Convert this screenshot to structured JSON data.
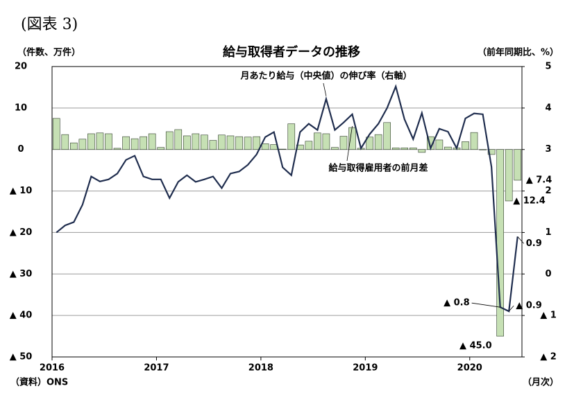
{
  "chart_data": {
    "type": "bar-line",
    "header": "(図表 3)",
    "title": "給与取得者データの推移",
    "y_label": "（件数、万件）",
    "y2_label": "（前年同期比、%）",
    "x_label": "（月次）",
    "source": "（資料）ONS",
    "categories": [
      "2016",
      null,
      null,
      null,
      null,
      null,
      null,
      null,
      null,
      null,
      null,
      null,
      "2017",
      null,
      null,
      null,
      null,
      null,
      null,
      null,
      null,
      null,
      null,
      null,
      "2018",
      null,
      null,
      null,
      null,
      null,
      null,
      null,
      null,
      null,
      null,
      null,
      "2019",
      null,
      null,
      null,
      null,
      null,
      null,
      null,
      null,
      null,
      null,
      null,
      "2020",
      null,
      null,
      null,
      null,
      null
    ],
    "ylim": [
      -50,
      20
    ],
    "yticks": [
      20,
      10,
      0,
      {
        "value": -10,
        "label": "▲ 10"
      },
      {
        "value": -20,
        "label": "▲ 20"
      },
      {
        "value": -30,
        "label": "▲ 30"
      },
      {
        "value": -40,
        "label": "▲ 40"
      },
      {
        "value": -50,
        "label": "▲ 50"
      }
    ],
    "y2lim": [
      -2,
      5
    ],
    "y2ticks": [
      5,
      4,
      3,
      2,
      1,
      0,
      {
        "value": -1,
        "label": "▲ 1"
      },
      {
        "value": -2,
        "label": "▲ 2"
      }
    ],
    "grid": true,
    "series": [
      {
        "name": "給与取得雇用者の前月差",
        "type": "bar",
        "color": "#c6e0b4",
        "values": [
          7.5,
          3.6,
          1.6,
          2.5,
          3.8,
          4.0,
          3.8,
          0.3,
          3.1,
          2.6,
          3.1,
          3.8,
          0.5,
          4.3,
          4.8,
          3.3,
          3.8,
          3.5,
          2.2,
          3.5,
          3.3,
          3.1,
          3.0,
          3.1,
          1.4,
          1.2,
          0.1,
          6.2,
          1.1,
          2.0,
          4.0,
          3.8,
          0.5,
          3.2,
          5.3,
          0.3,
          3.0,
          3.6,
          6.5,
          0.4,
          0.4,
          0.4,
          -0.7,
          3.1,
          2.3,
          0.6,
          0.4,
          1.9,
          4.1,
          -0.1,
          -1.2,
          -45.0,
          -12.4,
          -7.4
        ],
        "value_labels": [
          null,
          null,
          null,
          null,
          null,
          null,
          null,
          null,
          null,
          null,
          null,
          null,
          null,
          null,
          null,
          null,
          null,
          null,
          null,
          null,
          null,
          null,
          null,
          null,
          null,
          null,
          null,
          null,
          null,
          null,
          null,
          null,
          null,
          null,
          null,
          null,
          null,
          null,
          null,
          null,
          null,
          null,
          null,
          null,
          null,
          null,
          null,
          null,
          null,
          null,
          null,
          "▲ 45.0",
          "▲ 12.4",
          "▲ 7.4"
        ]
      },
      {
        "name": "月あたり給与（中央値）の伸び率（右軸）",
        "type": "line",
        "axis": "y2",
        "color": "#1f2d4e",
        "values": [
          1.0,
          1.17,
          1.25,
          1.67,
          2.35,
          2.23,
          2.28,
          2.42,
          2.75,
          2.85,
          2.35,
          2.28,
          2.28,
          1.83,
          2.22,
          2.38,
          2.22,
          2.28,
          2.35,
          2.07,
          2.42,
          2.47,
          2.63,
          2.88,
          3.3,
          3.42,
          2.57,
          2.38,
          3.42,
          3.62,
          3.47,
          4.22,
          3.47,
          3.65,
          3.85,
          3.03,
          3.37,
          3.62,
          4.0,
          4.52,
          3.73,
          3.25,
          3.88,
          3.03,
          3.5,
          3.43,
          3.03,
          3.75,
          3.87,
          3.85,
          2.58,
          -0.8,
          -0.9,
          0.9
        ],
        "value_labels": [
          null,
          null,
          null,
          null,
          null,
          null,
          null,
          null,
          null,
          null,
          null,
          null,
          null,
          null,
          null,
          null,
          null,
          null,
          null,
          null,
          null,
          null,
          null,
          null,
          null,
          null,
          null,
          null,
          null,
          null,
          null,
          null,
          null,
          null,
          null,
          null,
          null,
          null,
          null,
          null,
          null,
          null,
          null,
          null,
          null,
          null,
          null,
          null,
          null,
          null,
          null,
          "▲ 0.8",
          "▲ 0.9",
          "0.9"
        ]
      }
    ]
  }
}
